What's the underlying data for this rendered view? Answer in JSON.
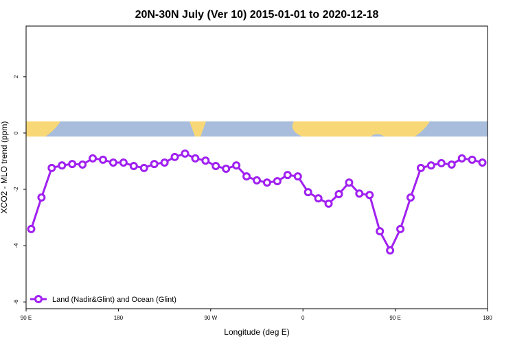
{
  "chart_data": {
    "type": "line",
    "title": "20N-30N July (Ver 10)   2015-01-01 to 2020-12-18",
    "x_label": "Longitude (deg E)",
    "y_label": "XCO2 - MLO trend (ppm)",
    "xlim": [
      90,
      540
    ],
    "xticks": [
      {
        "value": 90,
        "label": "90 E"
      },
      {
        "value": 180,
        "label": "180"
      },
      {
        "value": 270,
        "label": "90 W"
      },
      {
        "value": 360,
        "label": "0"
      },
      {
        "value": 450,
        "label": "90 E"
      },
      {
        "value": 540,
        "label": "180"
      }
    ],
    "ylim": [
      -6.24,
      3.8
    ],
    "yticks": [
      -6,
      -4,
      -2,
      0,
      2
    ],
    "legend": "bottom-left",
    "x": [
      95,
      105,
      115,
      125,
      135,
      145,
      155,
      165,
      175,
      185,
      195,
      205,
      215,
      225,
      235,
      245,
      255,
      265,
      275,
      285,
      295,
      305,
      315,
      325,
      335,
      345,
      355,
      365,
      375,
      385,
      395,
      405,
      415,
      425,
      435,
      445,
      455,
      465,
      475,
      485,
      495,
      505,
      515,
      525,
      535
    ],
    "series": [
      {
        "name": "Land (Nadir&Glint) and Ocean (Glint)",
        "color": "#a020f0",
        "values": [
          -3.41,
          -2.29,
          -1.24,
          -1.15,
          -1.1,
          -1.12,
          -0.9,
          -0.95,
          -1.05,
          -1.05,
          -1.17,
          -1.24,
          -1.1,
          -1.05,
          -0.85,
          -0.73,
          -0.9,
          -0.98,
          -1.17,
          -1.27,
          -1.15,
          -1.54,
          -1.68,
          -1.76,
          -1.71,
          -1.49,
          -1.54,
          -2.1,
          -2.32,
          -2.51,
          -2.17,
          -1.76,
          -2.15,
          -2.2,
          -3.49,
          -4.17,
          -3.41,
          -2.29,
          -1.24,
          -1.15,
          -1.07,
          -1.12,
          -0.9,
          -0.95,
          -1.05
        ]
      }
    ]
  }
}
